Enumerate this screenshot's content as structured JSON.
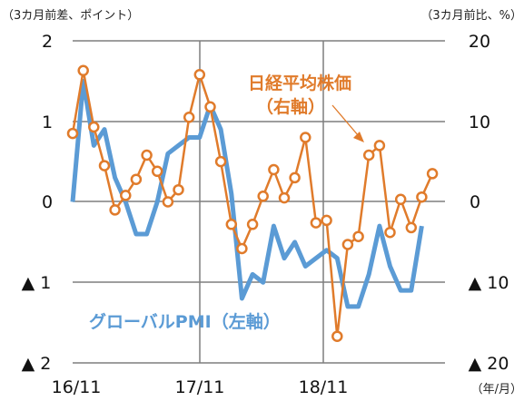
{
  "chart_data": {
    "type": "line",
    "title": "",
    "y_left_unit": "（3カ月前差、ポイント）",
    "y_right_unit": "（3カ月前比、%）",
    "x_unit": "（年/月）",
    "x_tick_labels": [
      "16/11",
      "17/11",
      "18/11"
    ],
    "y_left_ticks": [
      "2",
      "1",
      "0",
      "▲ 1",
      "▲ 2"
    ],
    "y_right_ticks": [
      "20",
      "10",
      "0",
      "▲ 10",
      "▲ 20"
    ],
    "ylim_left": [
      -2,
      2
    ],
    "ylim_right": [
      -20,
      20
    ],
    "grid": true,
    "series": [
      {
        "name": "グローバルPMI（左軸）",
        "axis": "left",
        "color": "#5B9BD5",
        "marker": "none",
        "values": [
          0.0,
          1.5,
          0.7,
          0.9,
          0.3,
          0.0,
          -0.4,
          -0.4,
          0.0,
          0.6,
          0.7,
          0.8,
          0.8,
          1.2,
          0.9,
          0.1,
          -1.2,
          -0.9,
          -1.0,
          -0.3,
          -0.7,
          -0.5,
          -0.8,
          -0.7,
          -0.6,
          -0.7,
          -1.3,
          -1.3,
          -0.9,
          -0.3,
          -0.8,
          -1.1,
          -1.1,
          -0.3
        ]
      },
      {
        "name": "日経平均株価（右軸）",
        "axis": "right",
        "color": "#E07B2B",
        "marker": "circle",
        "values": [
          8.5,
          16.3,
          9.3,
          4.5,
          -1.0,
          0.8,
          2.8,
          5.8,
          3.8,
          0.0,
          1.5,
          10.5,
          15.8,
          11.8,
          5.0,
          -2.8,
          -5.8,
          -2.8,
          0.7,
          4.0,
          0.5,
          3.0,
          8.0,
          -2.6,
          -2.3,
          -16.7,
          -5.3,
          -4.3,
          5.8,
          7.0,
          -3.8,
          0.3,
          -3.2,
          0.6,
          3.5
        ]
      }
    ]
  },
  "annotations": {
    "nikkei_line1": "日経平均株価",
    "nikkei_line2": "（右軸）",
    "pmi_label": "グローバルPMI（左軸）"
  },
  "colors": {
    "pmi": "#5B9BD5",
    "nikkei": "#E07B2B",
    "grid": "#7F7F7F"
  }
}
